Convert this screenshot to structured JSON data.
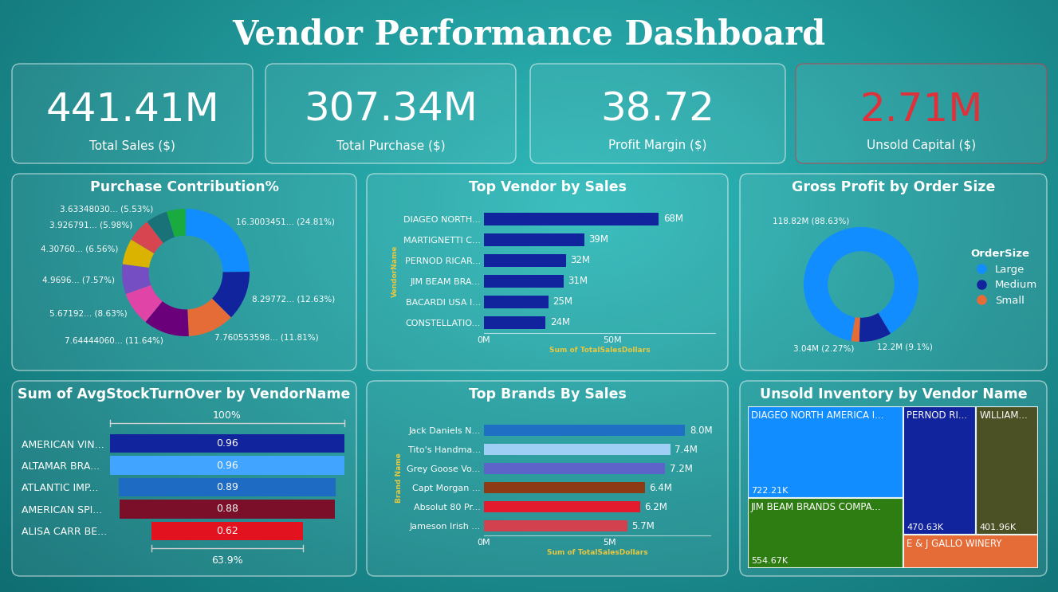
{
  "title": "Vendor Performance Dashboard",
  "kpis": [
    {
      "text": "441.41M",
      "caption": "Total Sales ($)",
      "color": "#ffffff"
    },
    {
      "text": "307.34M",
      "caption": "Total Purchase ($)",
      "color": "#ffffff"
    },
    {
      "text": "38.72",
      "caption": "Profit Margin ($)",
      "color": "#ffffff"
    },
    {
      "text": "2.71M",
      "caption": "Unsold Capital ($)",
      "color": "#e0313b"
    }
  ],
  "chart_data": [
    {
      "type": "pie",
      "title": "Purchase Contribution%",
      "values": [
        24.81,
        12.63,
        11.81,
        11.64,
        8.63,
        7.57,
        6.56,
        5.98,
        5.53,
        4.84
      ],
      "value_labels": [
        "16.3003451... (24.81%)",
        "8.29772... (12.63%)",
        "7.760553598... (11.81%)",
        "7.64444060... (11.64%)",
        "5.67192... (8.63%)",
        "4.9696... (7.57%)",
        "4.30760... (6.56%)",
        "3.926791... (5.98%)",
        "3.63348030... (5.53%)",
        null
      ],
      "colors": [
        "#118dff",
        "#12239e",
        "#e66c37",
        "#6b007b",
        "#e044a7",
        "#744ec2",
        "#d9b300",
        "#d64550",
        "#197278",
        "#1aab40"
      ],
      "data_labels": true
    },
    {
      "type": "bar",
      "orientation": "horizontal",
      "title": "Top Vendor by Sales",
      "categories": [
        "DIAGEO NORTH...",
        "MARTIGNETTI C...",
        "PERNOD RICAR...",
        "JIM BEAM BRA...",
        "BACARDI USA I...",
        "CONSTELLATIO..."
      ],
      "values": [
        68,
        39,
        32,
        31,
        25,
        24
      ],
      "value_labels": [
        "68M",
        "39M",
        "32M",
        "31M",
        "25M",
        "24M"
      ],
      "color": "#12239e",
      "xlabel": "Sum of TotalSalesDollars",
      "ylabel": "VendorName",
      "xlim": [
        0,
        90
      ],
      "xticks": [
        {
          "value": 0,
          "label": "0M"
        },
        {
          "value": 50,
          "label": "50M"
        }
      ],
      "data_labels": true
    },
    {
      "type": "pie",
      "title": "Gross Profit by Order Size",
      "categories": [
        "Large",
        "Medium",
        "Small"
      ],
      "values": [
        88.63,
        9.1,
        2.27
      ],
      "value_labels": [
        "118.82M (88.63%)",
        "12.2M (9.1%)",
        "3.04M (2.27%)"
      ],
      "colors": [
        "#118dff",
        "#12239e",
        "#e66c37"
      ],
      "legend": "right",
      "legend_title": "OrderSize",
      "data_labels": true
    },
    {
      "type": "funnel",
      "title": "Sum of AvgStockTurnOver by VendorName",
      "categories": [
        "AMERICAN VIN...",
        "ALTAMAR BRA...",
        "ATLANTIC IMP...",
        "AMERICAN SPI...",
        "ALISA CARR BE..."
      ],
      "values": [
        0.96,
        0.96,
        0.89,
        0.88,
        0.62
      ],
      "colors": [
        "#12239e",
        "#41a5ff",
        "#1d6bc2",
        "#7b0f2a",
        "#e3121f"
      ],
      "annotations": [
        "100%",
        "63.9%"
      ],
      "data_labels": true
    },
    {
      "type": "bar",
      "orientation": "horizontal",
      "title": "Top Brands By Sales",
      "categories": [
        "Jack Daniels N...",
        "Tito's Handma...",
        "Grey Goose Vo...",
        "Capt Morgan ...",
        "Absolut 80 Pr...",
        "Jameson Irish ..."
      ],
      "values": [
        8.0,
        7.4,
        7.2,
        6.4,
        6.2,
        5.7
      ],
      "value_labels": [
        "8.0M",
        "7.4M",
        "7.2M",
        "6.4M",
        "6.2M",
        "5.7M"
      ],
      "colors": [
        "#1f6fc5",
        "#a0cff5",
        "#5e63c9",
        "#8e3a14",
        "#e31b2c",
        "#d3414e"
      ],
      "xlabel": "Sum of TotalSalesDollars",
      "ylabel": "Brand Name",
      "xlim": [
        0,
        9
      ],
      "xticks": [
        {
          "value": 0,
          "label": "0M"
        },
        {
          "value": 5,
          "label": "5M"
        }
      ],
      "data_labels": true
    },
    {
      "type": "treemap",
      "title": "Unsold Inventory by Vendor Name",
      "categories": [
        "DIAGEO NORTH AMERICA I...",
        "JIM BEAM BRANDS COMPA...",
        "PERNOD RI...",
        "WILLIAM...",
        "E & J GALLO WINERY"
      ],
      "values": [
        722.21,
        554.67,
        470.63,
        401.96,
        230
      ],
      "value_labels": [
        "722.21K",
        "554.67K",
        "470.63K",
        "401.96K",
        null
      ],
      "colors": [
        "#118dff",
        "#2e7d12",
        "#12239e",
        "#4b5124",
        "#e66c37"
      ],
      "data_labels": true
    }
  ]
}
